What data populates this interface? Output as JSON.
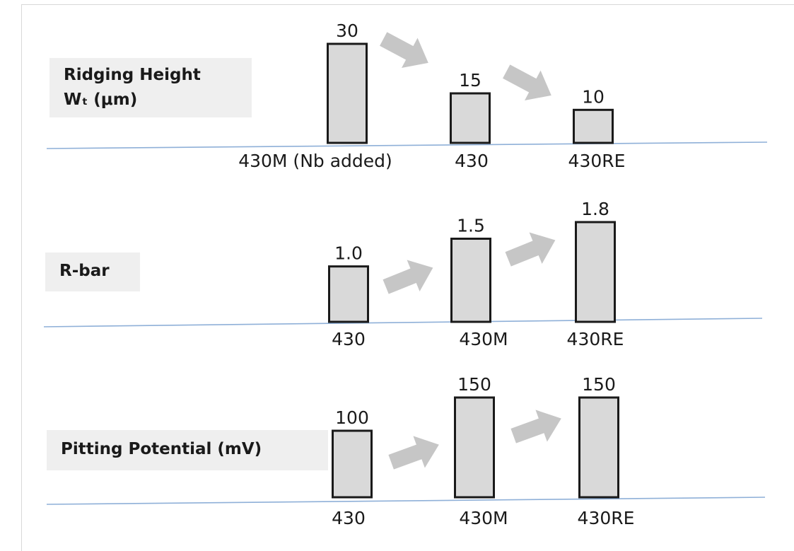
{
  "chart_data": [
    {
      "type": "bar",
      "title": "Ridging Height\nWₜ (μm)",
      "categories": [
        "430M (Nb added)",
        "430",
        "430RE"
      ],
      "values": [
        30,
        15,
        10
      ],
      "value_labels": [
        "30",
        "15",
        "10"
      ],
      "ylim": [
        0,
        30
      ]
    },
    {
      "type": "bar",
      "title": "R-bar",
      "categories": [
        "430",
        "430M",
        "430RE"
      ],
      "values": [
        1.0,
        1.5,
        1.8
      ],
      "value_labels": [
        "1.0",
        "1.5",
        "1.8"
      ],
      "ylim": [
        0,
        1.8
      ]
    },
    {
      "type": "bar",
      "title": "Pitting Potential (mV)",
      "categories": [
        "430",
        "430M",
        "430RE"
      ],
      "values": [
        100,
        150,
        150
      ],
      "value_labels": [
        "100",
        "150",
        "150"
      ],
      "ylim": [
        0,
        150
      ]
    }
  ],
  "colors": {
    "bar_fill": "#d9d9d9",
    "bar_stroke": "#1a1a1a",
    "arrow": "#c6c6c6",
    "baseline": "#8fb0d8",
    "label_box": "#efefef"
  }
}
